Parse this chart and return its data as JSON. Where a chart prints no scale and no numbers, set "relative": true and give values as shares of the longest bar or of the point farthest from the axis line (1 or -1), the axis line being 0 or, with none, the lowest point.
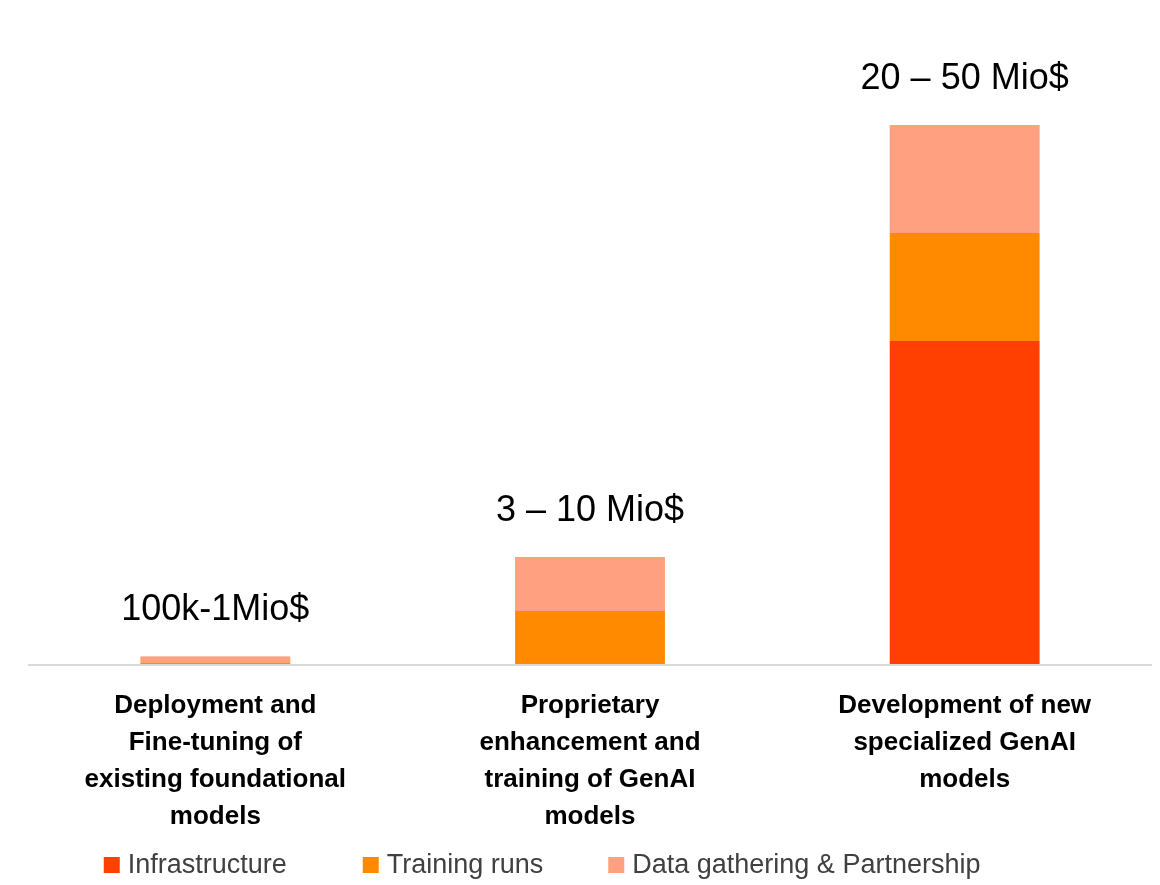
{
  "chart_data": {
    "type": "bar",
    "stacked": true,
    "relative": true,
    "categories": [
      "Deployment and Fine-tuning of existing foundational models",
      "Proprietary enhancement and training of GenAI models",
      "Development of new specialized GenAI models"
    ],
    "series": [
      {
        "name": "Infrastructure",
        "color": "#ff4000",
        "values": [
          0,
          0,
          0.6
        ]
      },
      {
        "name": "Training runs",
        "color": "#ff8a00",
        "values": [
          0.005,
          0.1,
          0.2
        ]
      },
      {
        "name": "Data gathering & Partnership",
        "color": "#ffa080",
        "values": [
          0.011,
          0.1,
          0.2
        ]
      }
    ],
    "totals": [
      "100k-1Mio$",
      "3 – 10 Mio$",
      "20 – 50 Mio$"
    ],
    "legend": "bottom"
  }
}
